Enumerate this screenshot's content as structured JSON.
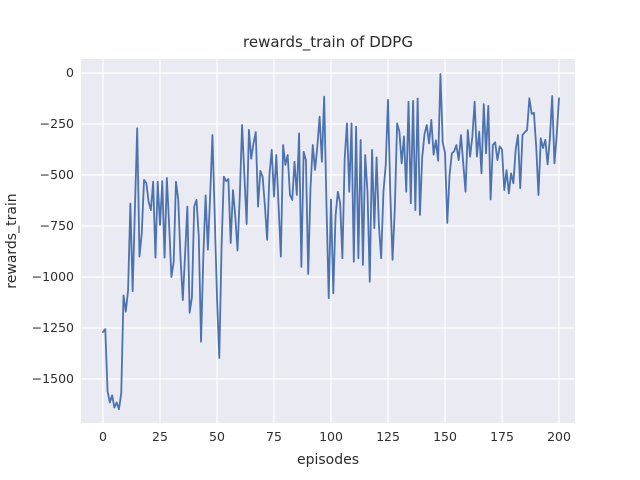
{
  "title": "rewards_train of DDPG",
  "colors": {
    "figure_background": "#ffffff",
    "axes_background": "#eaeaf2",
    "grid": "#ffffff",
    "line": "#4c72b0",
    "text": "#262626"
  },
  "chart_data": {
    "type": "line",
    "title": "rewards_train of DDPG",
    "xlabel": "episodes",
    "ylabel": "rewards_train",
    "legend": null,
    "grid": true,
    "x_tick_labels": [
      "0",
      "25",
      "50",
      "75",
      "100",
      "125",
      "150",
      "175",
      "200"
    ],
    "x_tick_values": [
      0,
      25,
      50,
      75,
      100,
      125,
      150,
      175,
      200
    ],
    "y_tick_labels": [
      "0",
      "−250",
      "−500",
      "−750",
      "−1000",
      "−1250",
      "−1500"
    ],
    "y_tick_values": [
      0,
      -250,
      -500,
      -750,
      -1000,
      -1250,
      -1500
    ],
    "xlim": [
      -10,
      207
    ],
    "ylim": [
      -1716,
      69
    ],
    "x_start": 0,
    "x_step": 1,
    "series": [
      {
        "name": "rewards_train",
        "color": "#4c72b0",
        "values": [
          -1270,
          -1255,
          -1560,
          -1615,
          -1580,
          -1640,
          -1615,
          -1648,
          -1570,
          -1090,
          -1170,
          -1065,
          -640,
          -1070,
          -663,
          -271,
          -900,
          -785,
          -524,
          -540,
          -630,
          -672,
          -533,
          -905,
          -533,
          -745,
          -530,
          -905,
          -515,
          -745,
          -1000,
          -925,
          -533,
          -620,
          -905,
          -1113,
          -890,
          -655,
          -1175,
          -1100,
          -655,
          -622,
          -800,
          -1317,
          -900,
          -600,
          -866,
          -600,
          -304,
          -700,
          -1100,
          -1397,
          -850,
          -508,
          -530,
          -520,
          -833,
          -574,
          -700,
          -870,
          -600,
          -255,
          -500,
          -740,
          -279,
          -420,
          -345,
          -290,
          -655,
          -480,
          -508,
          -650,
          -818,
          -500,
          -377,
          -606,
          -402,
          -650,
          -900,
          -353,
          -450,
          -402,
          -598,
          -622,
          -435,
          -598,
          -296,
          -950,
          -386,
          -427,
          -985,
          -565,
          -353,
          -475,
          -361,
          -214,
          -435,
          -116,
          -640,
          -1104,
          -620,
          -1080,
          -700,
          -582,
          -637,
          -908,
          -420,
          -247,
          -582,
          -247,
          -925,
          -263,
          -908,
          -328,
          -941,
          -402,
          -582,
          -1023,
          -377,
          -761,
          -414,
          -745,
          -908,
          -582,
          -450,
          -132,
          -590,
          -916,
          -660,
          -247,
          -288,
          -443,
          -311,
          -582,
          -141,
          -639,
          -137,
          -672,
          -125,
          -696,
          -413,
          -300,
          -255,
          -345,
          -230,
          -400,
          -330,
          -430,
          -5,
          -340,
          -390,
          -735,
          -500,
          -394,
          -384,
          -353,
          -427,
          -304,
          -443,
          -582,
          -280,
          -410,
          -311,
          -141,
          -410,
          -287,
          -492,
          -153,
          -394,
          -161,
          -620,
          -353,
          -340,
          -427,
          -360,
          -375,
          -574,
          -476,
          -590,
          -492,
          -541,
          -375,
          -304,
          -565,
          -304,
          -290,
          -280,
          -124,
          -200,
          -195,
          -361,
          -598,
          -320,
          -368,
          -328,
          -448,
          -320,
          -113,
          -443,
          -304,
          -124
        ]
      }
    ]
  }
}
